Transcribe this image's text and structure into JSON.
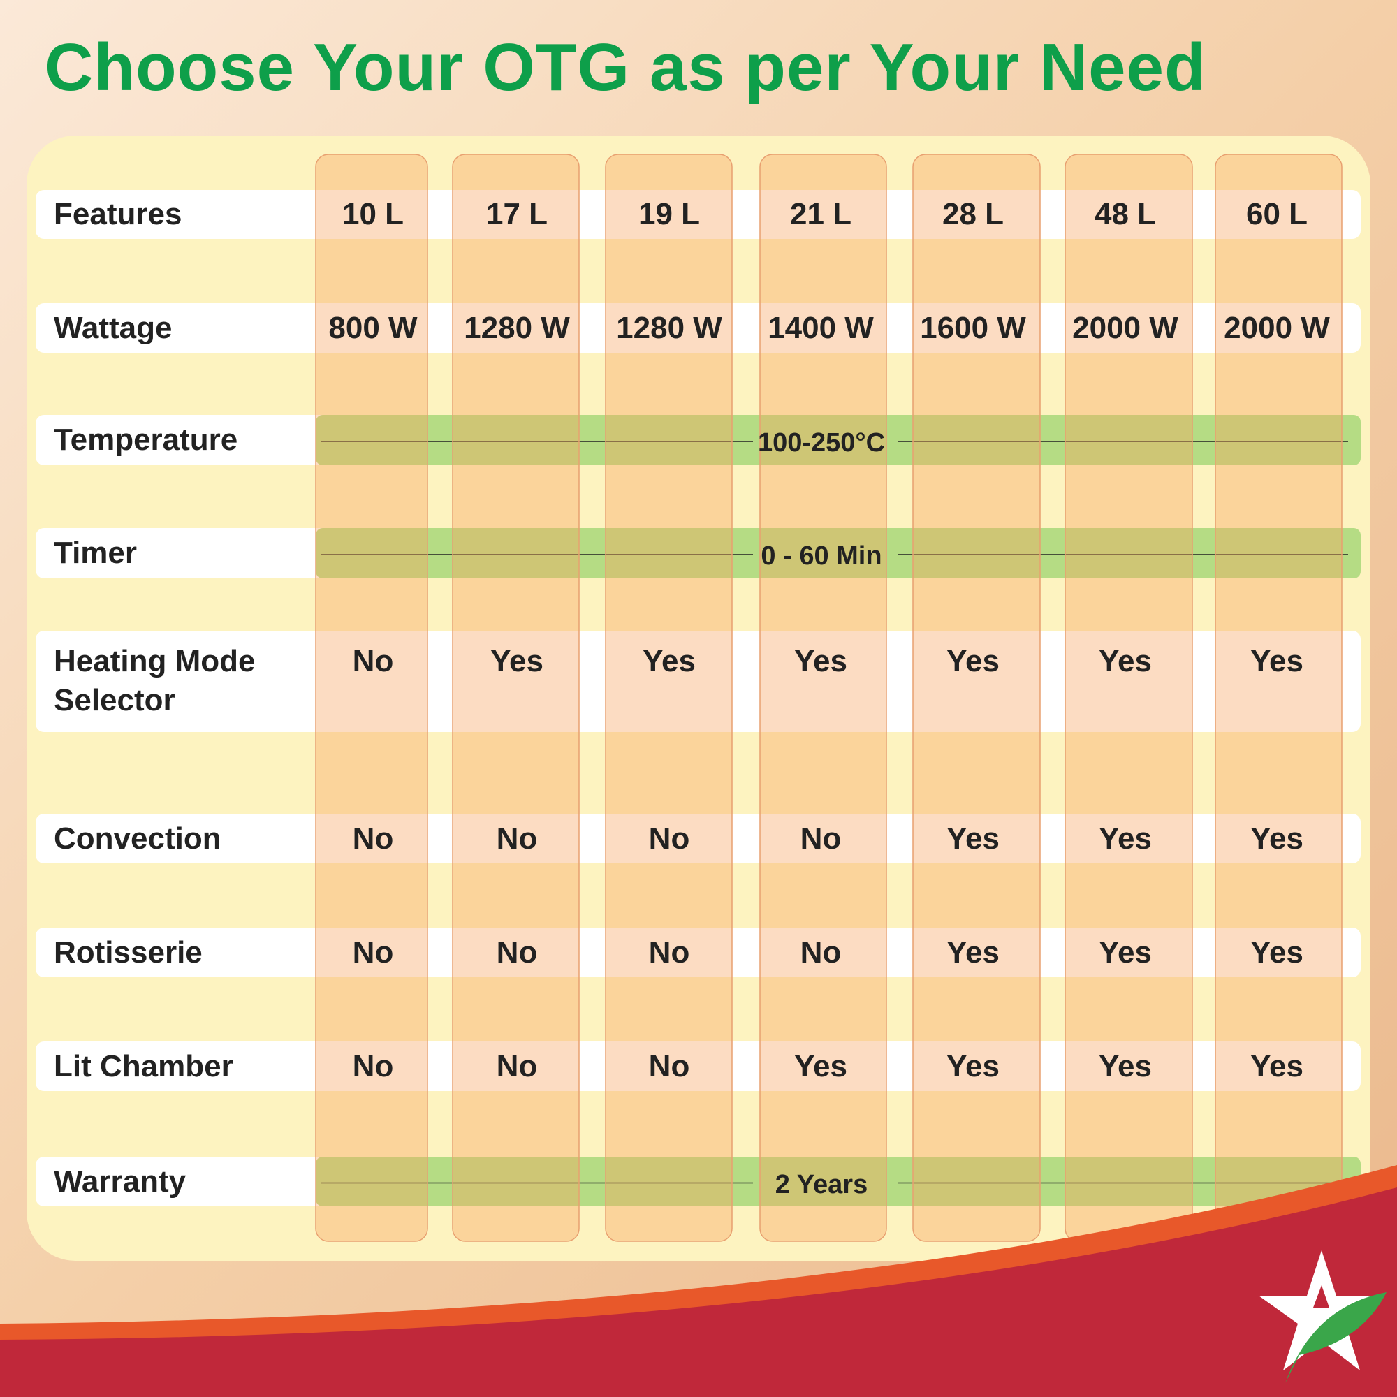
{
  "title": "Choose Your OTG as per Your Need",
  "table": {
    "header": [
      "Features",
      "10 L",
      "17 L",
      "19 L",
      "21 L",
      "28 L",
      "48 L",
      "60 L"
    ],
    "rows": [
      [
        "Wattage",
        "800 W",
        "1280 W",
        "1280 W",
        "1400 W",
        "1600 W",
        "2000 W",
        "2000 W"
      ],
      [
        "Temperature",
        "100-250°C"
      ],
      [
        "Timer",
        "0 - 60 Min"
      ],
      [
        "Heating Mode Selector",
        "No",
        "Yes",
        "Yes",
        "Yes",
        "Yes",
        "Yes",
        "Yes"
      ],
      [
        "Convection",
        "No",
        "No",
        "No",
        "No",
        "Yes",
        "Yes",
        "Yes"
      ],
      [
        "Rotisserie",
        "No",
        "No",
        "No",
        "No",
        "Yes",
        "Yes",
        "Yes"
      ],
      [
        "Lit Chamber",
        "No",
        "No",
        "No",
        "Yes",
        "Yes",
        "Yes",
        "Yes"
      ],
      [
        "Warranty",
        "2 Years"
      ]
    ]
  }
}
